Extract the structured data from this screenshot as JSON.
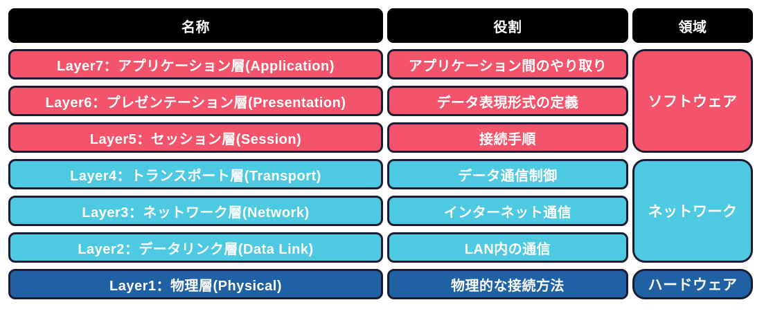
{
  "header": {
    "name_label": "名称",
    "role_label": "役割",
    "domain_label": "領域"
  },
  "layers": [
    {
      "name": "Layer7：アプリケーション層(Application)",
      "role": "アプリケーション間のやり取り",
      "group": "software"
    },
    {
      "name": "Layer6：プレゼンテーション層(Presentation)",
      "role": "データ表現形式の定義",
      "group": "software"
    },
    {
      "name": "Layer5：セッション層(Session)",
      "role": "接続手順",
      "group": "software"
    },
    {
      "name": "Layer4：トランスポート層(Transport)",
      "role": "データ通信制御",
      "group": "network"
    },
    {
      "name": "Layer3：ネットワーク層(Network)",
      "role": "インターネット通信",
      "group": "network"
    },
    {
      "name": "Layer2：データリンク層(Data Link)",
      "role": "LAN内の通信",
      "group": "network"
    },
    {
      "name": "Layer1：物理層(Physical)",
      "role": "物理的な接続方法",
      "group": "hardware"
    }
  ],
  "domains": [
    {
      "label": "ソフトウェア",
      "group": "software"
    },
    {
      "label": "ネットワーク",
      "group": "network"
    },
    {
      "label": "ハードウェア",
      "group": "hardware"
    }
  ],
  "colors": {
    "software": "#f4546b",
    "network": "#4ec9e2",
    "hardware": "#2061a3",
    "header_bg": "#000000",
    "border": "#1b1b33",
    "text": "#ffffff",
    "background": "#ffffff"
  }
}
